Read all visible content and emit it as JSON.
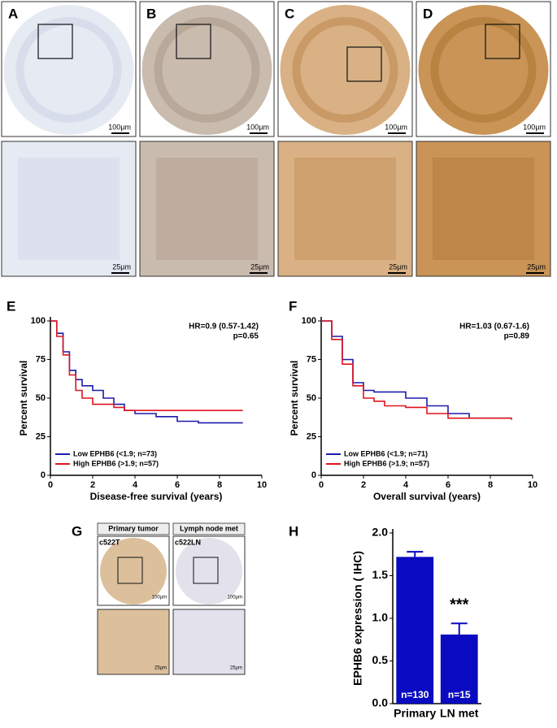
{
  "panels": {
    "top": [
      {
        "label": "A",
        "scale_top": "100µm",
        "scale_bottom": "25µm",
        "color": "#e6eaf3",
        "stain": "#c9d0e3"
      },
      {
        "label": "B",
        "scale_top": "100µm",
        "scale_bottom": "25µm",
        "color": "#c9bbae",
        "stain": "#a89584"
      },
      {
        "label": "C",
        "scale_top": "100µm",
        "scale_bottom": "25µm",
        "color": "#d9b184",
        "stain": "#b98447"
      },
      {
        "label": "D",
        "scale_top": "100µm",
        "scale_bottom": "25µm",
        "color": "#c99456",
        "stain": "#a86f2c"
      }
    ],
    "G": {
      "label": "G",
      "headers": [
        "Primary tumor",
        "Lymph node met"
      ],
      "samples": [
        "c522T",
        "c522LN"
      ],
      "scale_top": [
        "100µm",
        "100µm"
      ],
      "scale_bottom": [
        "25µm",
        "25µm"
      ],
      "colors": [
        "#dcc09c",
        "#e3e2ec"
      ]
    }
  },
  "chart_data": [
    {
      "type": "step",
      "panel_label": "E",
      "xlabel": "Disease-free survival (years)",
      "ylabel": "Percent survival",
      "annotations": [
        "HR=0.9 (0.57-1.42)",
        "p=0.65"
      ],
      "xlim": [
        0,
        10
      ],
      "ylim": [
        0,
        100
      ],
      "xticks": [
        0,
        2,
        4,
        6,
        8,
        10
      ],
      "yticks": [
        0,
        25,
        50,
        75,
        100
      ],
      "legend": "lower left",
      "series": [
        {
          "name": "Low EPHB6 (<1.9; n=73)",
          "color": "#1c1caa",
          "x": [
            0,
            0.3,
            0.6,
            0.9,
            1.2,
            1.5,
            2,
            2.5,
            3,
            3.5,
            4,
            5,
            6,
            7,
            9.1
          ],
          "values": [
            100,
            92,
            80,
            68,
            62,
            58,
            55,
            50,
            46,
            42,
            40,
            38,
            35,
            34,
            34
          ]
        },
        {
          "name": "High EPHB6 (>1.9; n=57)",
          "color": "#e0141e",
          "x": [
            0,
            0.3,
            0.6,
            0.9,
            1.2,
            1.5,
            2,
            2.5,
            3,
            3.5,
            9.1
          ],
          "values": [
            100,
            90,
            78,
            65,
            55,
            50,
            46,
            46,
            44,
            42,
            42
          ]
        }
      ]
    },
    {
      "type": "step",
      "panel_label": "F",
      "xlabel": "Overall survival (years)",
      "ylabel": "Percent survival",
      "annotations": [
        "HR=1.03 (0.67-1.6)",
        "p=0.89"
      ],
      "xlim": [
        0,
        10
      ],
      "ylim": [
        0,
        100
      ],
      "xticks": [
        0,
        2,
        4,
        6,
        8,
        10
      ],
      "yticks": [
        0,
        25,
        50,
        75,
        100
      ],
      "legend": "lower left",
      "series": [
        {
          "name": "Low EPHB6 (<1.9; n=71)",
          "color": "#1c1caa",
          "x": [
            0,
            0.5,
            1,
            1.5,
            2,
            2.5,
            3,
            4,
            5,
            6,
            7,
            9
          ],
          "values": [
            100,
            90,
            75,
            60,
            55,
            54,
            54,
            50,
            45,
            40,
            37,
            37
          ]
        },
        {
          "name": "High EPHB6 (>1.9; n=57)",
          "color": "#e0141e",
          "x": [
            0,
            0.5,
            1,
            1.5,
            2,
            2.5,
            3,
            4,
            5,
            6,
            9
          ],
          "values": [
            100,
            88,
            72,
            58,
            50,
            48,
            45,
            44,
            40,
            37,
            36
          ]
        }
      ]
    },
    {
      "type": "bar",
      "panel_label": "H",
      "ylabel": "EPHB6 expression ( IHC)",
      "categories": [
        "Primary",
        "LN met"
      ],
      "values": [
        1.72,
        0.81
      ],
      "errors": [
        0.06,
        0.13
      ],
      "bar_labels": [
        "n=130",
        "n=15"
      ],
      "annotations": [
        "***"
      ],
      "color": "#0a0ac0",
      "ylim": [
        0,
        2
      ],
      "yticks": [
        {
          "value": 0,
          "label": "0.0"
        },
        0.5,
        {
          "value": 1,
          "label": "1.0"
        },
        1.5,
        {
          "value": 2,
          "label": "2.0"
        }
      ]
    }
  ]
}
